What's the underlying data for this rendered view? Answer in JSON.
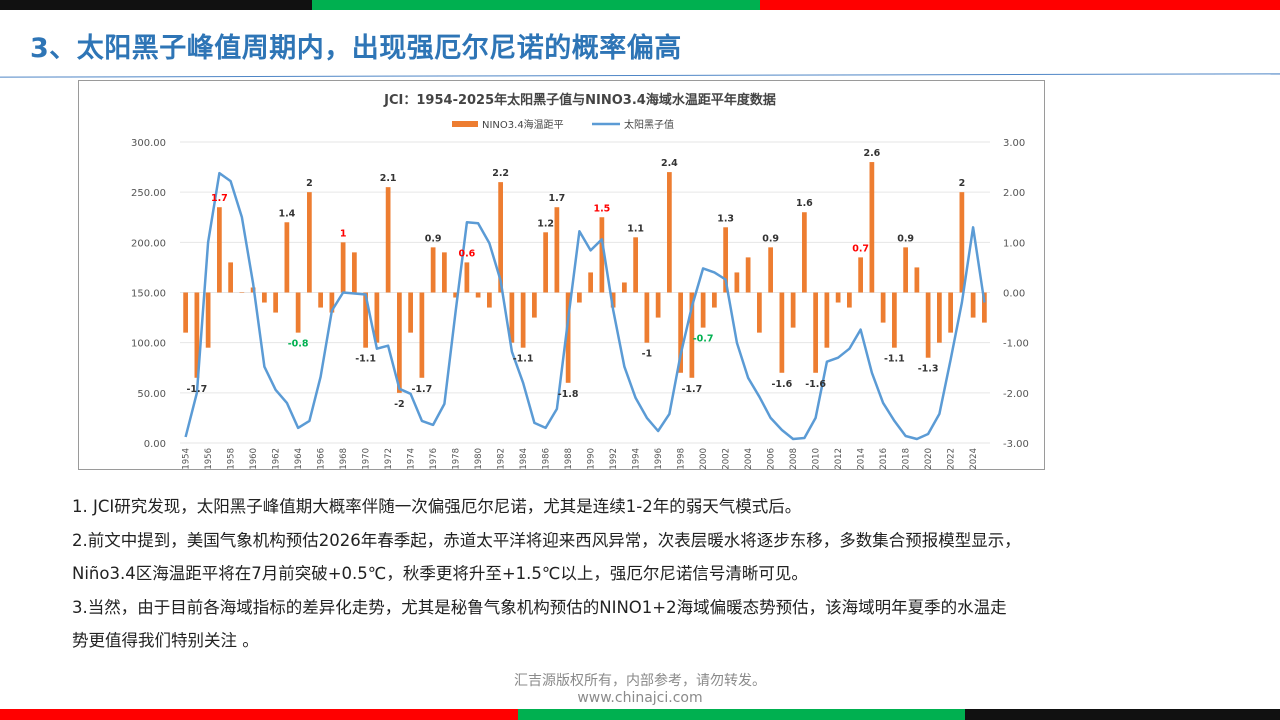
{
  "slide": {
    "title": "3、太阳黑子峰值周期内，出现强厄尔尼诺的概率偏高",
    "paragraphs": [
      "1. JCI研究发现，太阳黑子峰值期大概率伴随一次偏强厄尔尼诺，尤其是连续1-2年的弱天气模式后。",
      "2.前文中提到，美国气象机构预估2026年春季起，赤道太平洋将迎来西风异常，次表层暖水将逐步东移，多数集合预报模型显示，",
      "Niño3.4区海温距平将在7月前突破+0.5℃，秋季更将升至+1.5℃以上，强厄尔尼诺信号清晰可见。",
      "3.当然，由于目前各海域指标的差异化走势，尤其是秘鲁气象机构预估的NINO1+2海域偏暖态势预估，该海域明年夏季的水温走",
      "势更值得我们特别关注 。"
    ],
    "footer_line1": "汇吉源版权所有，内部参考，请勿转发。",
    "footer_line2": "www.chinajci.com",
    "colors": {
      "title": "#2E75B6",
      "bar": "#ED7D31",
      "line": "#5B9BD5",
      "label_red": "#FF0000",
      "label_green": "#00B050"
    }
  },
  "chart_data": {
    "type": "bar+line",
    "title": "JCI：1954-2025年太阳黑子值与NINO3.4海域水温距平年度数据",
    "legend": [
      "NINO3.4海温距平",
      "太阳黑子值"
    ],
    "legend_position": "top",
    "x": [
      1954,
      1955,
      1956,
      1957,
      1958,
      1959,
      1960,
      1961,
      1962,
      1963,
      1964,
      1965,
      1966,
      1967,
      1968,
      1969,
      1970,
      1971,
      1972,
      1973,
      1974,
      1975,
      1976,
      1977,
      1978,
      1979,
      1980,
      1981,
      1982,
      1983,
      1984,
      1985,
      1986,
      1987,
      1988,
      1989,
      1990,
      1991,
      1992,
      1993,
      1994,
      1995,
      1996,
      1997,
      1998,
      1999,
      2000,
      2001,
      2002,
      2003,
      2004,
      2005,
      2006,
      2007,
      2008,
      2009,
      2010,
      2011,
      2012,
      2013,
      2014,
      2015,
      2016,
      2017,
      2018,
      2019,
      2020,
      2021,
      2022,
      2023,
      2024,
      2025
    ],
    "series": [
      {
        "name": "NINO3.4海温距平",
        "axis": "right",
        "values": [
          -0.8,
          -1.7,
          -1.1,
          1.7,
          0.6,
          0,
          0.1,
          -0.2,
          -0.4,
          1.4,
          -0.8,
          2.0,
          -0.3,
          -0.4,
          1.0,
          0.8,
          -1.1,
          -1.0,
          2.1,
          -2.0,
          -0.8,
          -1.7,
          0.9,
          0.8,
          -0.1,
          0.6,
          -0.1,
          -0.3,
          2.2,
          -1.0,
          -1.1,
          -0.5,
          1.2,
          1.7,
          -1.8,
          -0.2,
          0.4,
          1.5,
          -0.3,
          0.2,
          1.1,
          -1.0,
          -0.5,
          2.4,
          -1.6,
          -1.7,
          -0.7,
          -0.3,
          1.3,
          0.4,
          0.7,
          -0.8,
          0.9,
          -1.6,
          -0.7,
          1.6,
          -1.6,
          -1.1,
          -0.2,
          -0.3,
          0.7,
          2.6,
          -0.6,
          -1.1,
          0.9,
          0.5,
          -1.3,
          -1.0,
          -0.8,
          2.0,
          -0.5,
          -0.6
        ]
      },
      {
        "name": "太阳黑子值",
        "axis": "left",
        "values": [
          6,
          50,
          200,
          269,
          261,
          225,
          159,
          76,
          53,
          40,
          15,
          22,
          66,
          132,
          150,
          149,
          148,
          94,
          97,
          54,
          49,
          22,
          18,
          39,
          131,
          220,
          219,
          199,
          162,
          91,
          60,
          20,
          15,
          34,
          123,
          211,
          192,
          203,
          133,
          76,
          45,
          25,
          12,
          29,
          88,
          136,
          174,
          170,
          163,
          100,
          65,
          46,
          25,
          13,
          4,
          5,
          25,
          81,
          85,
          94,
          113,
          70,
          40,
          22,
          7,
          4,
          9,
          29,
          83,
          140,
          215,
          140
        ]
      }
    ],
    "data_labels": [
      {
        "year": 1955,
        "text": "-1.7",
        "color": "black"
      },
      {
        "year": 1957,
        "text": "1.7",
        "color": "red"
      },
      {
        "year": 1963,
        "text": "1.4",
        "color": "black"
      },
      {
        "year": 1964,
        "text": "-0.8",
        "color": "green"
      },
      {
        "year": 1965,
        "text": "2",
        "color": "black"
      },
      {
        "year": 1968,
        "text": "1",
        "color": "red"
      },
      {
        "year": 1970,
        "text": "-1.1",
        "color": "black"
      },
      {
        "year": 1972,
        "text": "2.1",
        "color": "black"
      },
      {
        "year": 1973,
        "text": "-2",
        "color": "black"
      },
      {
        "year": 1975,
        "text": "-1.7",
        "color": "black"
      },
      {
        "year": 1976,
        "text": "0.9",
        "color": "black"
      },
      {
        "year": 1979,
        "text": "0.6",
        "color": "red"
      },
      {
        "year": 1982,
        "text": "2.2",
        "color": "black"
      },
      {
        "year": 1984,
        "text": "-1.1",
        "color": "black"
      },
      {
        "year": 1986,
        "text": "1.2",
        "color": "black"
      },
      {
        "year": 1987,
        "text": "1.7",
        "color": "black"
      },
      {
        "year": 1988,
        "text": "-1.8",
        "color": "black"
      },
      {
        "year": 1991,
        "text": "1.5",
        "color": "red"
      },
      {
        "year": 1994,
        "text": "1.1",
        "color": "black"
      },
      {
        "year": 1995,
        "text": "-1",
        "color": "black"
      },
      {
        "year": 1997,
        "text": "2.4",
        "color": "black"
      },
      {
        "year": 1999,
        "text": "-1.7",
        "color": "black"
      },
      {
        "year": 2000,
        "text": "-0.7",
        "color": "green"
      },
      {
        "year": 2002,
        "text": "1.3",
        "color": "black"
      },
      {
        "year": 2006,
        "text": "0.9",
        "color": "black"
      },
      {
        "year": 2007,
        "text": "-1.6",
        "color": "black"
      },
      {
        "year": 2009,
        "text": "1.6",
        "color": "black"
      },
      {
        "year": 2010,
        "text": "-1.6",
        "color": "black"
      },
      {
        "year": 2014,
        "text": "0.7",
        "color": "red"
      },
      {
        "year": 2015,
        "text": "2.6",
        "color": "black"
      },
      {
        "year": 2017,
        "text": "-1.1",
        "color": "black"
      },
      {
        "year": 2018,
        "text": "0.9",
        "color": "black"
      },
      {
        "year": 2020,
        "text": "-1.3",
        "color": "black"
      },
      {
        "year": 2023,
        "text": "2",
        "color": "black"
      }
    ],
    "y_left": {
      "range": [
        0,
        300
      ],
      "ticks": [
        "0.00",
        "50.00",
        "100.00",
        "150.00",
        "200.00",
        "250.00",
        "300.00"
      ]
    },
    "y_right": {
      "range": [
        -3,
        3
      ],
      "ticks": [
        "-3.00",
        "-2.00",
        "-1.00",
        "0.00",
        "1.00",
        "2.00",
        "3.00"
      ]
    },
    "x_tick_labels": [
      "1954",
      "1956",
      "1958",
      "1960",
      "1962",
      "1964",
      "1966",
      "1968",
      "1970",
      "1972",
      "1974",
      "1976",
      "1978",
      "1980",
      "1982",
      "1984",
      "1986",
      "1988",
      "1990",
      "1992",
      "1994",
      "1996",
      "1998",
      "2000",
      "2002",
      "2004",
      "2006",
      "2008",
      "2010",
      "2012",
      "2014",
      "2016",
      "2018",
      "2020",
      "2022",
      "2024"
    ],
    "grid": true
  }
}
